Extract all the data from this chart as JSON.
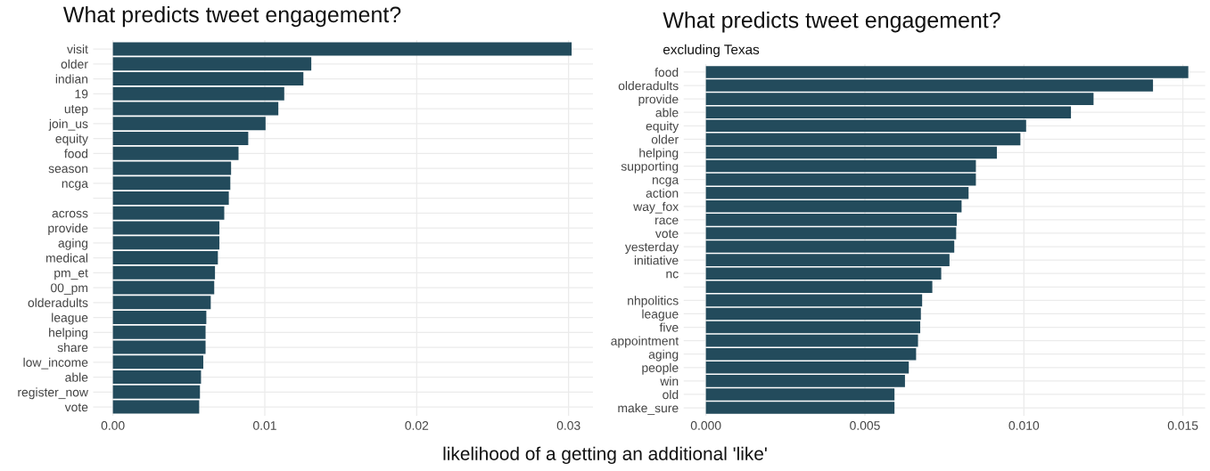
{
  "chart_data": [
    {
      "type": "bar",
      "orientation": "horizontal",
      "title": "What predicts tweet engagement?",
      "xlabel": "likelihood of a getting an additional 'like'",
      "categories": [
        "visit",
        "older",
        "indian",
        "19",
        "utep",
        "join_us",
        "equity",
        "food",
        "season",
        "ncga",
        null,
        "across",
        "provide",
        "aging",
        "medical",
        "pm_et",
        "00_pm",
        "olderadults",
        "league",
        "helping",
        "share",
        "low_income",
        "able",
        "register_now",
        "vote"
      ],
      "values": [
        0.0302,
        0.01306,
        0.01254,
        0.01128,
        0.01089,
        0.01005,
        0.00891,
        0.00827,
        0.00778,
        0.00773,
        0.00763,
        0.00733,
        0.00701,
        0.00701,
        0.00691,
        0.00672,
        0.00667,
        0.00644,
        0.00615,
        0.0061,
        0.0061,
        0.00595,
        0.0058,
        0.00573,
        0.00568
      ],
      "color": "#234b5c",
      "xlim": [
        -0.0013,
        0.0316
      ],
      "xticks": [
        {
          "value": 0,
          "label": "0.00"
        },
        {
          "value": 0.01,
          "label": "0.01"
        },
        {
          "value": 0.02,
          "label": "0.02"
        },
        {
          "value": 0.03,
          "label": "0.03"
        }
      ],
      "grid": true
    },
    {
      "type": "bar",
      "orientation": "horizontal",
      "title": "What predicts tweet engagement?",
      "subtitle": "excluding Texas",
      "categories": [
        "food",
        "olderadults",
        "provide",
        "able",
        "equity",
        "older",
        "helping",
        "supporting",
        "ncga",
        "action",
        "way_fox",
        "race",
        "vote",
        "yesterday",
        "initiative",
        "nc",
        null,
        "nhpolitics",
        "league",
        "five",
        "appointment",
        "aging",
        "people",
        "win",
        "old",
        "make_sure"
      ],
      "values": [
        0.01517,
        0.01406,
        0.01219,
        0.01148,
        0.01007,
        0.00989,
        0.00915,
        0.00849,
        0.00849,
        0.00826,
        0.00804,
        0.00789,
        0.00787,
        0.00781,
        0.00766,
        0.0074,
        0.00712,
        0.0068,
        0.00676,
        0.00674,
        0.00667,
        0.00661,
        0.00638,
        0.00626,
        0.00593,
        0.00593
      ],
      "color": "#234b5c",
      "xlim": [
        -0.0007,
        0.0157
      ],
      "xticks": [
        {
          "value": 0,
          "label": "0.000"
        },
        {
          "value": 0.005,
          "label": "0.005"
        },
        {
          "value": 0.01,
          "label": "0.010"
        },
        {
          "value": 0.015,
          "label": "0.015"
        }
      ],
      "grid": true
    }
  ]
}
